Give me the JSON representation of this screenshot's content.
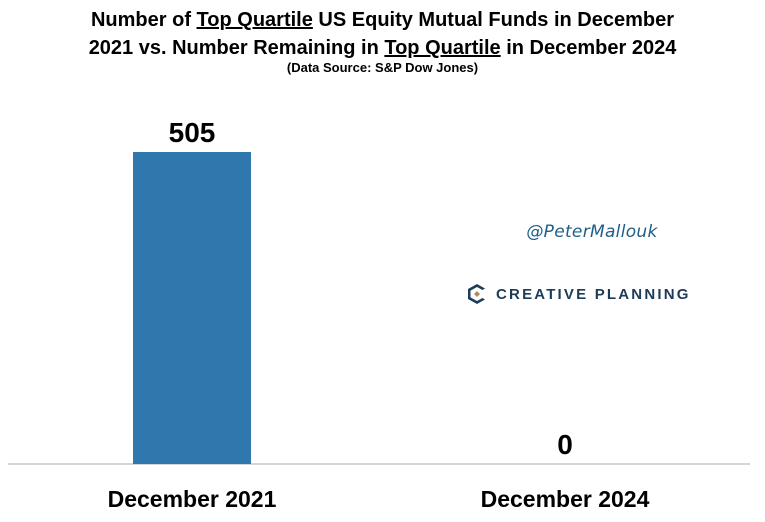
{
  "title": {
    "line1_part1": "Number of ",
    "line1_underlined": "Top Quartile",
    "line1_part2": " US Equity Mutual Funds in December",
    "line2_part1": "2021 vs. Number Remaining in ",
    "line2_underlined": "Top Quartile",
    "line2_part2": " in December 2024"
  },
  "subtitle": "(Data Source: S&P Dow Jones)",
  "watermark": "@PeterMallouk",
  "logo": {
    "text": "CREATIVE PLANNING",
    "icon": "creative-planning-logo-icon"
  },
  "colors": {
    "bar": "#2e78ad",
    "axis": "#c8c8c8",
    "logo_text": "#1d3c57",
    "handle": "#1d5f8a"
  },
  "chart_data": {
    "type": "bar",
    "categories": [
      "December 2021",
      "December 2024"
    ],
    "values": [
      505,
      0
    ],
    "data_labels": [
      "505",
      "0"
    ],
    "ylim": [
      0,
      505
    ],
    "grid": false,
    "legend": "none"
  }
}
